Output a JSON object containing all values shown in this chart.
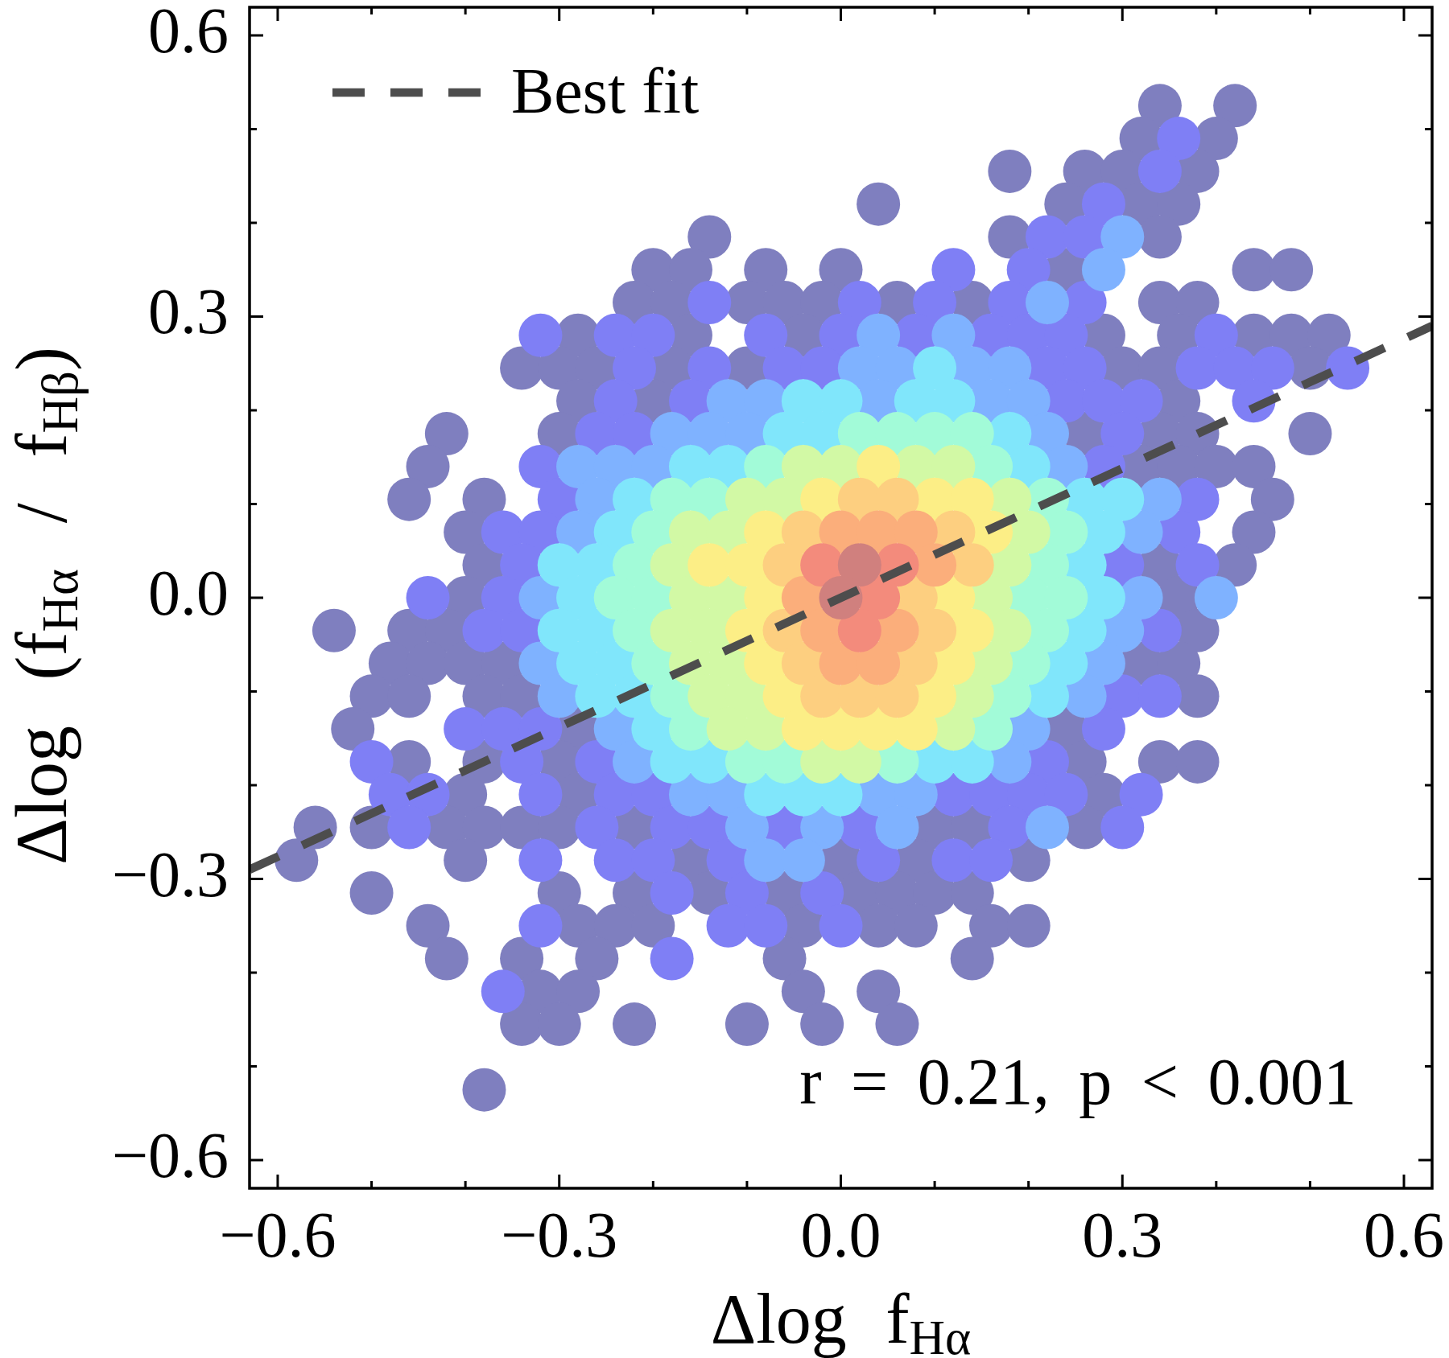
{
  "chart_data": {
    "type": "scatter",
    "xlabel": "Δlog f$_{Hα}$",
    "ylabel": "Δlog (f$_{Hα}$ / f$_{Hβ}$)",
    "annotations": [
      "r = 0.21, p < 0.001"
    ],
    "xlim": [
      -0.63,
      0.63
    ],
    "ylim": [
      -0.63,
      0.63
    ],
    "xticks": [
      {
        "value": -0.6,
        "label": "−0.6"
      },
      {
        "value": -0.5,
        "label": null
      },
      {
        "value": -0.4,
        "label": null
      },
      {
        "value": -0.3,
        "label": "−0.3"
      },
      {
        "value": -0.2,
        "label": null
      },
      {
        "value": -0.1,
        "label": null
      },
      {
        "value": 0,
        "label": "0.0"
      },
      {
        "value": 0.1,
        "label": null
      },
      {
        "value": 0.2,
        "label": null
      },
      0.3,
      {
        "value": 0.4,
        "label": null
      },
      {
        "value": 0.5,
        "label": null
      },
      0.6
    ],
    "yticks": [
      {
        "value": -0.6,
        "label": "−0.6"
      },
      {
        "value": -0.5,
        "label": null
      },
      {
        "value": -0.4,
        "label": null
      },
      {
        "value": -0.3,
        "label": "−0.3"
      },
      {
        "value": -0.2,
        "label": null
      },
      {
        "value": -0.1,
        "label": null
      },
      {
        "value": 0,
        "label": "0.0"
      },
      {
        "value": 0.1,
        "label": null
      },
      {
        "value": 0.2,
        "label": null
      },
      0.3,
      {
        "value": 0.4,
        "label": null
      },
      {
        "value": 0.5,
        "label": null
      },
      0.6
    ],
    "marker": "circle",
    "legend": "top left",
    "series": [
      {
        "color": "#7f7fbf",
        "x": [
          0.34,
          0.42,
          0.32,
          0.4,
          0.18,
          0.26,
          0.3,
          0.38,
          0.04,
          0.24,
          0.32,
          0.36,
          -0.14,
          0.18,
          0.34,
          -0.2,
          -0.16,
          -0.08,
          0,
          0.24,
          0.44,
          0.48,
          -0.22,
          -0.18,
          -0.1,
          -0.06,
          -0.02,
          0.06,
          0.14,
          0.34,
          0.38,
          -0.28,
          -0.16,
          -0.04,
          0.28,
          0.36,
          0.44,
          0.48,
          0.52,
          -0.34,
          -0.3,
          -0.26,
          -0.18,
          -0.1,
          0.3,
          0.34,
          0.5,
          -0.28,
          -0.2,
          0.36,
          -0.42,
          -0.3,
          0.26,
          0.34,
          0.38,
          0.5,
          -0.44,
          0.32,
          0.36,
          0.4,
          0.44,
          -0.46,
          -0.38,
          0.46,
          -0.4,
          0.44,
          -0.38,
          0.34,
          0.42,
          -0.4,
          0.36,
          -0.54,
          -0.46,
          -0.42,
          0.38,
          -0.48,
          -0.44,
          -0.4,
          -0.36,
          0.32,
          0.36,
          -0.5,
          -0.46,
          -0.38,
          -0.34,
          0.38,
          -0.52,
          -0.28,
          0.24,
          -0.46,
          -0.38,
          -0.3,
          0.26,
          0.34,
          0.38,
          -0.4,
          -0.28,
          0.28,
          -0.56,
          -0.5,
          -0.42,
          -0.38,
          -0.34,
          -0.3,
          -0.22,
          0.1,
          0.14,
          0.26,
          -0.58,
          -0.4,
          -0.16,
          0,
          0.08,
          0.2,
          -0.5,
          -0.3,
          -0.22,
          -0.14,
          -0.06,
          0.02,
          0.06,
          0.1,
          0.14,
          -0.44,
          -0.28,
          -0.24,
          -0.2,
          -0.04,
          0.04,
          0.08,
          0.16,
          0.2,
          -0.42,
          -0.34,
          -0.26,
          -0.06,
          0.14,
          -0.32,
          -0.28,
          -0.04,
          0.04,
          -0.34,
          -0.3,
          -0.22,
          -0.1,
          -0.02,
          0.06,
          -0.38
        ],
        "values": [
          0.525,
          0.525,
          0.49,
          0.49,
          0.455,
          0.455,
          0.455,
          0.455,
          0.42,
          0.42,
          0.42,
          0.42,
          0.385,
          0.385,
          0.385,
          0.35,
          0.35,
          0.35,
          0.35,
          0.35,
          0.35,
          0.35,
          0.315,
          0.315,
          0.315,
          0.315,
          0.315,
          0.315,
          0.315,
          0.315,
          0.315,
          0.28,
          0.28,
          0.28,
          0.28,
          0.28,
          0.28,
          0.28,
          0.28,
          0.245,
          0.245,
          0.245,
          0.245,
          0.245,
          0.245,
          0.245,
          0.245,
          0.21,
          0.21,
          0.21,
          0.175,
          0.175,
          0.175,
          0.175,
          0.175,
          0.175,
          0.14,
          0.14,
          0.14,
          0.14,
          0.14,
          0.105,
          0.105,
          0.105,
          0.07,
          0.07,
          0.035,
          0.035,
          0.035,
          0,
          0,
          -0.035,
          -0.035,
          -0.035,
          -0.035,
          -0.07,
          -0.07,
          -0.07,
          -0.07,
          -0.07,
          -0.07,
          -0.105,
          -0.105,
          -0.105,
          -0.105,
          -0.105,
          -0.14,
          -0.14,
          -0.14,
          -0.175,
          -0.175,
          -0.175,
          -0.175,
          -0.175,
          -0.175,
          -0.21,
          -0.21,
          -0.21,
          -0.245,
          -0.245,
          -0.245,
          -0.245,
          -0.245,
          -0.245,
          -0.245,
          -0.245,
          -0.245,
          -0.245,
          -0.28,
          -0.28,
          -0.28,
          -0.28,
          -0.28,
          -0.28,
          -0.315,
          -0.315,
          -0.315,
          -0.315,
          -0.315,
          -0.315,
          -0.315,
          -0.315,
          -0.315,
          -0.35,
          -0.35,
          -0.35,
          -0.35,
          -0.35,
          -0.35,
          -0.35,
          -0.35,
          -0.35,
          -0.385,
          -0.385,
          -0.385,
          -0.385,
          -0.385,
          -0.42,
          -0.42,
          -0.42,
          -0.42,
          -0.455,
          -0.455,
          -0.455,
          -0.455,
          -0.455,
          -0.455,
          -0.525
        ]
      },
      {
        "color": "#7f7ff5",
        "x": [
          0.36,
          0.34,
          0.28,
          0.22,
          0.26,
          0.12,
          0.2,
          -0.14,
          0.02,
          0.1,
          0.18,
          0.26,
          -0.32,
          -0.24,
          -0.2,
          -0.08,
          0,
          0.08,
          0.16,
          0.2,
          0.24,
          0.4,
          -0.22,
          -0.14,
          -0.06,
          -0.02,
          0.22,
          0.26,
          0.38,
          0.42,
          0.46,
          0.54,
          -0.24,
          -0.16,
          0.24,
          0.28,
          0.32,
          0.44,
          -0.26,
          -0.22,
          0.3,
          -0.32,
          0.28,
          -0.3,
          0.38,
          -0.36,
          -0.32,
          0.36,
          -0.34,
          0.3,
          0.38,
          -0.44,
          -0.36,
          -0.38,
          -0.34,
          0.34,
          0.3,
          0.34,
          -0.4,
          -0.36,
          -0.32,
          0.28,
          -0.5,
          -0.34,
          -0.26,
          0.22,
          -0.48,
          -0.44,
          -0.32,
          -0.24,
          -0.2,
          0.12,
          0.16,
          0.2,
          0.24,
          0.32,
          -0.46,
          -0.26,
          -0.18,
          -0.14,
          -0.06,
          0.02,
          0.18,
          0.3,
          -0.32,
          -0.24,
          -0.2,
          -0.12,
          0.04,
          0.12,
          0.16,
          -0.18,
          -0.1,
          -0.02,
          -0.32,
          -0.12,
          -0.08,
          0,
          -0.18,
          -0.36
        ],
        "values": [
          0.49,
          0.455,
          0.42,
          0.385,
          0.385,
          0.35,
          0.35,
          0.315,
          0.315,
          0.315,
          0.315,
          0.315,
          0.28,
          0.28,
          0.28,
          0.28,
          0.28,
          0.28,
          0.28,
          0.28,
          0.28,
          0.28,
          0.245,
          0.245,
          0.245,
          0.245,
          0.245,
          0.245,
          0.245,
          0.245,
          0.245,
          0.245,
          0.21,
          0.21,
          0.21,
          0.21,
          0.21,
          0.21,
          0.175,
          0.175,
          0.175,
          0.14,
          0.14,
          0.105,
          0.105,
          0.07,
          0.07,
          0.07,
          0.035,
          0.035,
          0.035,
          0,
          0,
          -0.035,
          -0.035,
          -0.035,
          -0.105,
          -0.105,
          -0.14,
          -0.14,
          -0.14,
          -0.14,
          -0.175,
          -0.175,
          -0.175,
          -0.175,
          -0.21,
          -0.21,
          -0.21,
          -0.21,
          -0.21,
          -0.21,
          -0.21,
          -0.21,
          -0.21,
          -0.21,
          -0.245,
          -0.245,
          -0.245,
          -0.245,
          -0.245,
          -0.245,
          -0.245,
          -0.245,
          -0.28,
          -0.28,
          -0.28,
          -0.28,
          -0.28,
          -0.28,
          -0.28,
          -0.315,
          -0.315,
          -0.315,
          -0.35,
          -0.35,
          -0.35,
          -0.35,
          -0.385,
          -0.42
        ]
      },
      {
        "color": "#7fb2ff",
        "x": [
          0.3,
          0.28,
          0.22,
          0.04,
          0.12,
          0.02,
          0.06,
          0.14,
          0.18,
          -0.12,
          -0.08,
          0.04,
          0.16,
          0.2,
          -0.18,
          -0.14,
          -0.1,
          0.22,
          -0.28,
          -0.24,
          -0.2,
          0.24,
          -0.26,
          0.34,
          -0.28,
          0.32,
          -0.32,
          0.32,
          0.4,
          0.3,
          -0.32,
          0.28,
          -0.3,
          0.26,
          -0.24,
          0.2,
          -0.22,
          0.18,
          -0.16,
          -0.12,
          0.04,
          0.08,
          -0.1,
          -0.02,
          0.06,
          0.22,
          -0.08,
          -0.04
        ],
        "values": [
          0.385,
          0.35,
          0.315,
          0.28,
          0.28,
          0.245,
          0.245,
          0.245,
          0.245,
          0.21,
          0.21,
          0.21,
          0.21,
          0.21,
          0.175,
          0.175,
          0.175,
          0.175,
          0.14,
          0.14,
          0.14,
          0.14,
          0.105,
          0.105,
          0.07,
          0.07,
          0,
          0,
          0,
          -0.035,
          -0.07,
          -0.07,
          -0.105,
          -0.105,
          -0.14,
          -0.14,
          -0.175,
          -0.175,
          -0.21,
          -0.21,
          -0.21,
          -0.21,
          -0.245,
          -0.245,
          -0.245,
          -0.245,
          -0.28,
          -0.28
        ]
      },
      {
        "color": "#80e6fb",
        "x": [
          0.1,
          -0.04,
          0,
          0.08,
          0.12,
          -0.06,
          -0.02,
          0.18,
          -0.16,
          -0.12,
          0.2,
          -0.22,
          0.26,
          0.3,
          -0.24,
          0.28,
          -0.3,
          -0.26,
          0.26,
          -0.28,
          0.28,
          -0.3,
          -0.26,
          0.26,
          -0.28,
          -0.24,
          0.24,
          -0.26,
          -0.22,
          0.22,
          -0.2,
          -0.18,
          -0.14,
          0.1,
          0.14,
          -0.08,
          -0.04,
          0
        ],
        "values": [
          0.245,
          0.21,
          0.21,
          0.21,
          0.21,
          0.175,
          0.175,
          0.175,
          0.14,
          0.14,
          0.14,
          0.105,
          0.105,
          0.105,
          0.07,
          0.07,
          0.035,
          0.035,
          0.035,
          0,
          0,
          -0.035,
          -0.035,
          -0.035,
          -0.07,
          -0.07,
          -0.07,
          -0.105,
          -0.105,
          -0.105,
          -0.14,
          -0.175,
          -0.175,
          -0.175,
          -0.175,
          -0.21,
          -0.21,
          -0.21
        ]
      },
      {
        "color": "#a2fbd8",
        "x": [
          0.02,
          0.06,
          0.1,
          0.14,
          -0.08,
          0.16,
          -0.18,
          -0.14,
          0.22,
          -0.2,
          0.24,
          -0.22,
          0.22,
          -0.24,
          -0.2,
          0.2,
          0.24,
          -0.22,
          0.22,
          -0.2,
          0.2,
          -0.18,
          0.18,
          -0.16,
          0.16,
          -0.1,
          -0.06,
          0.06
        ],
        "values": [
          0.175,
          0.175,
          0.175,
          0.175,
          0.14,
          0.14,
          0.105,
          0.105,
          0.105,
          0.07,
          0.07,
          0.035,
          0.035,
          0,
          0,
          0,
          0,
          -0.035,
          -0.035,
          -0.07,
          -0.07,
          -0.105,
          -0.105,
          -0.14,
          -0.14,
          -0.175,
          -0.175,
          -0.175
        ]
      },
      {
        "color": "#d2f9a5",
        "x": [
          -0.04,
          0,
          0.08,
          0.12,
          -0.1,
          -0.06,
          0.18,
          -0.16,
          -0.12,
          0.2,
          -0.18,
          0.18,
          -0.16,
          -0.12,
          0.16,
          -0.18,
          -0.14,
          0.18,
          -0.16,
          -0.12,
          0.16,
          -0.14,
          -0.1,
          0.14,
          -0.12,
          -0.08,
          0.12,
          -0.02,
          0.02
        ],
        "values": [
          0.14,
          0.14,
          0.14,
          0.14,
          0.105,
          0.105,
          0.105,
          0.07,
          0.07,
          0.07,
          0.035,
          0.035,
          0,
          0,
          0,
          -0.035,
          -0.035,
          -0.035,
          -0.07,
          -0.07,
          -0.07,
          -0.105,
          -0.105,
          -0.105,
          -0.14,
          -0.14,
          -0.14,
          -0.175,
          -0.175
        ]
      },
      {
        "color": "#fcee86",
        "x": [
          0.04,
          -0.02,
          0.1,
          0.14,
          -0.08,
          0.16,
          -0.14,
          -0.1,
          -0.08,
          0.12,
          -0.1,
          0.14,
          -0.08,
          0.12,
          -0.06,
          0.1,
          -0.04,
          0,
          0.04,
          0.08
        ],
        "values": [
          0.14,
          0.105,
          0.105,
          0.105,
          0.07,
          0.07,
          0.035,
          0.035,
          0,
          0,
          -0.035,
          -0.035,
          -0.07,
          -0.07,
          -0.105,
          -0.105,
          -0.14,
          -0.14,
          -0.14,
          -0.14
        ]
      },
      {
        "color": "#fdcf80",
        "x": [
          0.02,
          0.06,
          -0.04,
          0.12,
          -0.06,
          0.14,
          0.08,
          -0.06,
          0.1,
          -0.04,
          0.08,
          -0.02,
          0.02,
          0.06
        ],
        "values": [
          0.105,
          0.105,
          0.07,
          0.07,
          0.035,
          0.035,
          0,
          -0.035,
          -0.035,
          -0.07,
          -0.07,
          -0.105,
          -0.105,
          -0.105
        ]
      },
      {
        "color": "#fbae7b",
        "x": [
          0,
          0.04,
          0.08,
          0.1,
          -0.04,
          -0.02,
          0.06,
          0,
          0.04
        ],
        "values": [
          0.07,
          0.07,
          0.07,
          0.035,
          0,
          -0.035,
          -0.035,
          -0.07,
          -0.07
        ]
      },
      {
        "color": "#f38b7c",
        "x": [
          -0.02,
          0.06,
          0.04,
          0.02
        ],
        "values": [
          0.035,
          0.035,
          0,
          -0.035
        ]
      },
      {
        "color": "#d0807e",
        "x": [
          0.02,
          0
        ],
        "values": [
          0.035,
          0
        ]
      },
      {
        "name": "Best fit",
        "type": "line",
        "color": "#4d4d4d",
        "line_style": "dashed",
        "marker": "none",
        "x": [
          -0.63,
          0.63
        ],
        "values": [
          -0.29,
          0.29
        ]
      }
    ]
  }
}
